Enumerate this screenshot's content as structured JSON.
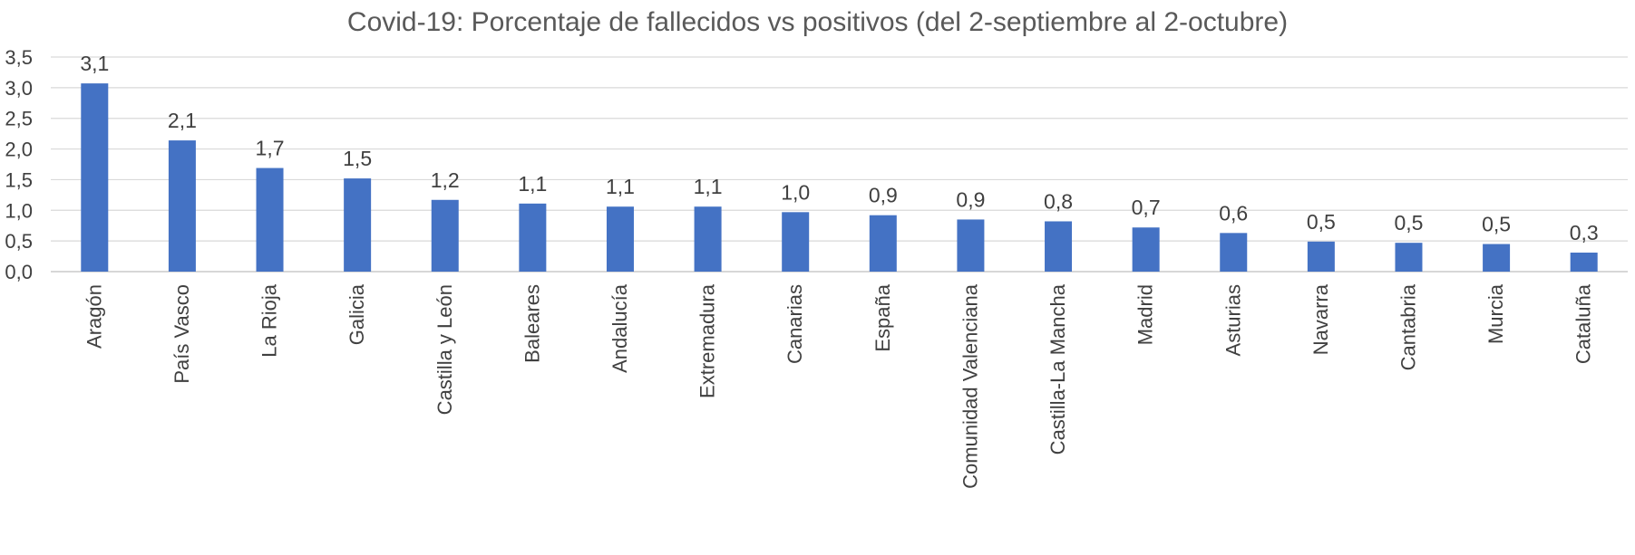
{
  "chart_data": {
    "type": "bar",
    "title": "Covid-19: Porcentaje de fallecidos vs positivos (del 2-septiembre al 2-octubre)",
    "xlabel": "",
    "ylabel": "",
    "ylim": [
      0,
      3.5
    ],
    "yticks": [
      "0,0",
      "0,5",
      "1,0",
      "1,5",
      "2,0",
      "2,5",
      "3,0",
      "3,5"
    ],
    "grid": true,
    "legend": "none",
    "bar_color": "#4472C4",
    "categories": [
      "Aragón",
      "País Vasco",
      "La Rioja",
      "Galicia",
      "Castilla y León",
      "Baleares",
      "Andalucía",
      "Extremadura",
      "Canarias",
      "España",
      "Comunidad Valenciana",
      "Castilla-La Mancha",
      "Madrid",
      "Asturias",
      "Navarra",
      "Cantabria",
      "Murcia",
      "Cataluña"
    ],
    "values": [
      3.07,
      2.14,
      1.69,
      1.52,
      1.17,
      1.11,
      1.06,
      1.06,
      0.97,
      0.92,
      0.85,
      0.82,
      0.72,
      0.63,
      0.49,
      0.47,
      0.45,
      0.31
    ],
    "data_labels": [
      "3,1",
      "2,1",
      "1,7",
      "1,5",
      "1,2",
      "1,1",
      "1,1",
      "1,1",
      "1,0",
      "0,9",
      "0,9",
      "0,8",
      "0,7",
      "0,6",
      "0,5",
      "0,5",
      "0,5",
      "0,3"
    ]
  }
}
